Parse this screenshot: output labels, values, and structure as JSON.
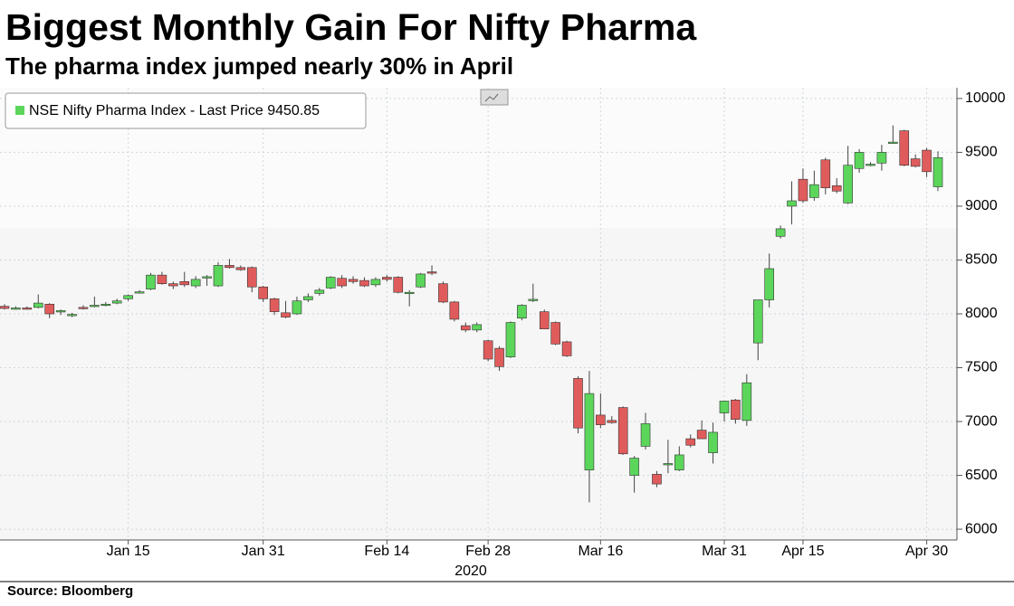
{
  "chart_data": {
    "type": "candlestick",
    "title": "Biggest Monthly Gain For Nifty Pharma",
    "subtitle": "The pharma index jumped nearly 30% in April",
    "source": "Source: Bloomberg",
    "year_label": "2020",
    "categories": [
      null,
      null,
      null,
      null,
      null,
      null,
      null,
      null,
      null,
      null,
      null,
      "Jan 15",
      null,
      null,
      null,
      null,
      null,
      null,
      null,
      null,
      null,
      null,
      null,
      "Jan 31",
      null,
      null,
      null,
      null,
      null,
      null,
      null,
      null,
      null,
      null,
      "Feb 14",
      null,
      null,
      null,
      null,
      null,
      null,
      null,
      null,
      "Feb 28",
      null,
      null,
      null,
      null,
      null,
      null,
      null,
      null,
      null,
      "Mar 16",
      null,
      null,
      null,
      null,
      null,
      null,
      null,
      null,
      null,
      null,
      "Mar 31",
      null,
      null,
      null,
      null,
      null,
      null,
      "Apr 15",
      null,
      null,
      null,
      null,
      null,
      null,
      null,
      null,
      null,
      null,
      "Apr 30",
      null
    ],
    "series": [
      {
        "name": "NSE Nifty Pharma Index - Last Price",
        "last_price": 9450.85,
        "up_color": "#5bd65b",
        "down_color": "#e05c5c",
        "open": [
          8070,
          8050,
          8055,
          8060,
          8090,
          8020,
          7990,
          8060,
          8070,
          8085,
          8100,
          8140,
          8200,
          8230,
          8360,
          8280,
          8300,
          8260,
          8340,
          8260,
          8450,
          8430,
          8430,
          8250,
          8140,
          8010,
          8000,
          8130,
          8190,
          8240,
          8330,
          8320,
          8310,
          8270,
          8340,
          8340,
          8195,
          8250,
          8390,
          8280,
          8110,
          7890,
          7850,
          7750,
          7680,
          7600,
          7960,
          8130,
          8020,
          7920,
          7740,
          7400,
          6550,
          7060,
          7010,
          7130,
          6500,
          6770,
          6510,
          6600,
          6550,
          6840,
          6920,
          6710,
          7080,
          7200,
          7010,
          7730,
          8130,
          8720,
          9000,
          9250,
          9080,
          9430,
          9190,
          9030,
          9350,
          9380,
          9400,
          9590,
          9700,
          9440,
          9520,
          9180
        ],
        "high": [
          8090,
          8070,
          8070,
          8180,
          8100,
          8040,
          8010,
          8080,
          8160,
          8110,
          8140,
          8180,
          8220,
          8380,
          8390,
          8300,
          8390,
          8350,
          8360,
          8480,
          8510,
          8450,
          8440,
          8260,
          8150,
          8120,
          8160,
          8190,
          8240,
          8350,
          8360,
          8350,
          8340,
          8340,
          8360,
          8350,
          8220,
          8380,
          8450,
          8300,
          8120,
          7920,
          7920,
          7760,
          7700,
          7930,
          8090,
          8280,
          8040,
          7930,
          7750,
          7420,
          7470,
          7260,
          7050,
          7140,
          6680,
          7080,
          6540,
          6830,
          6770,
          6880,
          7010,
          6990,
          7190,
          7210,
          7440,
          8130,
          8560,
          8820,
          9230,
          9350,
          9330,
          9450,
          9260,
          9560,
          9530,
          9410,
          9570,
          9750,
          9710,
          9480,
          9540,
          9510
        ],
        "low": [
          8040,
          8040,
          8040,
          8050,
          7960,
          7990,
          7970,
          8040,
          8060,
          8070,
          8090,
          8120,
          8190,
          8220,
          8270,
          8230,
          8250,
          8240,
          8260,
          8250,
          8420,
          8400,
          8200,
          8110,
          7990,
          7960,
          7990,
          8110,
          8170,
          8230,
          8240,
          8280,
          8250,
          8250,
          8300,
          8190,
          8070,
          8240,
          8360,
          8100,
          7930,
          7830,
          7830,
          7560,
          7470,
          7590,
          7940,
          8110,
          7860,
          7710,
          7600,
          6890,
          6250,
          6940,
          6980,
          6690,
          6340,
          6740,
          6390,
          6520,
          6540,
          6760,
          6840,
          6610,
          7000,
          6980,
          6960,
          7570,
          8060,
          8700,
          8830,
          9030,
          9050,
          9110,
          9120,
          9020,
          9310,
          9370,
          9330,
          9580,
          9370,
          9360,
          9270,
          9140
        ],
        "close": [
          8050,
          8055,
          8050,
          8100,
          8000,
          8030,
          7995,
          8050,
          8080,
          8090,
          8120,
          8170,
          8205,
          8360,
          8280,
          8260,
          8270,
          8320,
          8345,
          8450,
          8430,
          8410,
          8250,
          8140,
          8020,
          7970,
          8120,
          8160,
          8220,
          8340,
          8260,
          8300,
          8260,
          8320,
          8320,
          8200,
          8200,
          8370,
          8380,
          8110,
          7950,
          7850,
          7900,
          7580,
          7510,
          7920,
          8080,
          8135,
          7860,
          7720,
          7610,
          6940,
          7260,
          6970,
          6990,
          6700,
          6660,
          6980,
          6420,
          6610,
          6690,
          6780,
          6840,
          6900,
          7190,
          7020,
          7360,
          8130,
          8420,
          8790,
          9050,
          9050,
          9200,
          9170,
          9140,
          9380,
          9500,
          9390,
          9500,
          9595,
          9380,
          9370,
          9320,
          9450.85
        ]
      }
    ],
    "ylim": [
      5900,
      10100
    ],
    "yticks": [
      6000,
      6500,
      7000,
      7500,
      8000,
      8500,
      9000,
      9500,
      10000
    ],
    "grid": true
  }
}
